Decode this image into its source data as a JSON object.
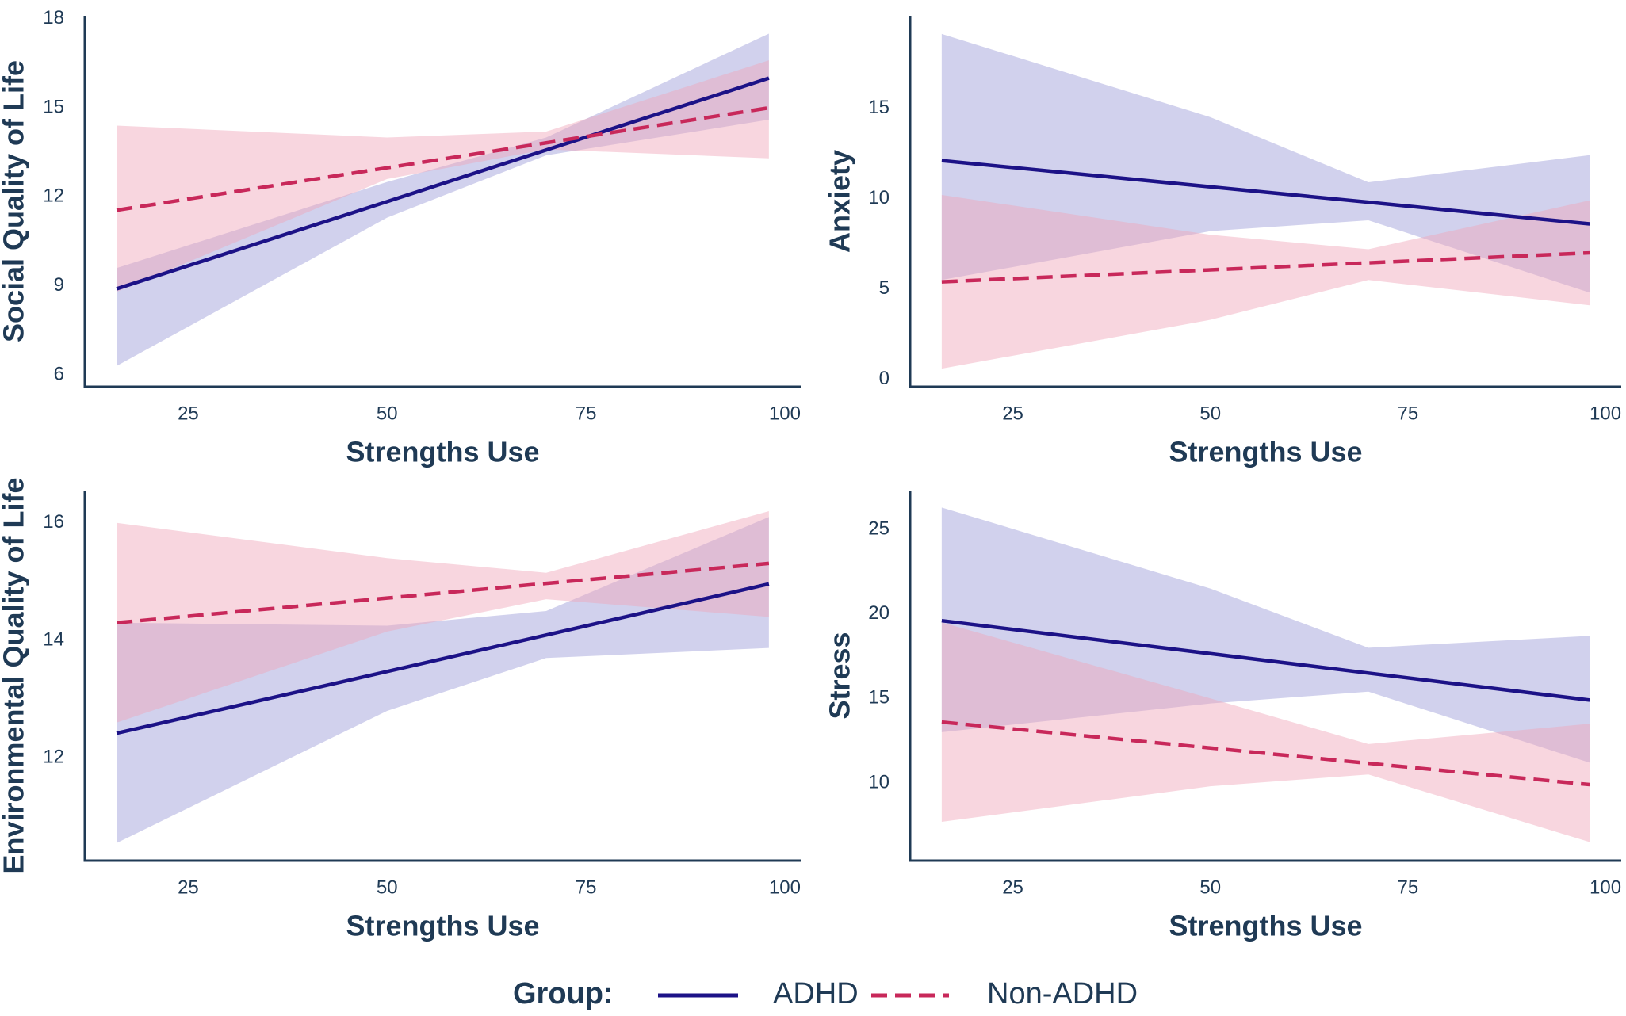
{
  "chart_data": [
    {
      "type": "line",
      "x_label": "Strengths Use",
      "y_label": "Social Quality of Life",
      "xlim": [
        12,
        102
      ],
      "xticks": [
        25,
        50,
        75,
        100
      ],
      "ylim": [
        5.6,
        18.1
      ],
      "yticks": [
        6,
        9,
        12,
        15,
        18
      ],
      "series": [
        {
          "name": "ADHD",
          "color": "#1c1287",
          "band_color": "#9a9ad6",
          "dashed": false,
          "x": [
            16,
            50,
            70,
            98
          ],
          "values": [
            8.9,
            11.84,
            13.58,
            16.0
          ],
          "lower": [
            6.3,
            11.3,
            13.4,
            14.6
          ],
          "upper": [
            9.6,
            12.5,
            14.0,
            17.5
          ]
        },
        {
          "name": "Non-ADHD",
          "color": "#c8285a",
          "band_color": "#f0a3b8",
          "dashed": true,
          "x": [
            16,
            50,
            70,
            98
          ],
          "values": [
            11.55,
            12.98,
            13.82,
            15.0
          ],
          "lower": [
            8.8,
            12.6,
            13.6,
            13.3
          ],
          "upper": [
            14.4,
            14.0,
            14.2,
            16.6
          ]
        }
      ]
    },
    {
      "type": "line",
      "x_label": "Strengths Use",
      "y_label": "Anxiety",
      "xlim": [
        12,
        102
      ],
      "xticks": [
        25,
        50,
        75,
        100
      ],
      "ylim": [
        -0.4,
        20.1
      ],
      "yticks": [
        0,
        5,
        10,
        15
      ],
      "series": [
        {
          "name": "ADHD",
          "color": "#1c1287",
          "band_color": "#9a9ad6",
          "dashed": false,
          "x": [
            16,
            50,
            70,
            98
          ],
          "values": [
            12.1,
            10.65,
            9.8,
            8.6
          ],
          "lower": [
            5.5,
            8.2,
            8.8,
            4.8
          ],
          "upper": [
            19.1,
            14.5,
            10.9,
            12.4
          ]
        },
        {
          "name": "Non-ADHD",
          "color": "#c8285a",
          "band_color": "#f0a3b8",
          "dashed": true,
          "x": [
            16,
            50,
            70,
            98
          ],
          "values": [
            5.4,
            6.06,
            6.45,
            7.0
          ],
          "lower": [
            0.6,
            3.3,
            5.5,
            4.1
          ],
          "upper": [
            10.2,
            8.0,
            7.2,
            9.9
          ]
        }
      ]
    },
    {
      "type": "line",
      "x_label": "Strengths Use",
      "y_label": "Environmental Quality of Life",
      "xlim": [
        12,
        102
      ],
      "xticks": [
        25,
        50,
        75,
        100
      ],
      "ylim": [
        10.25,
        16.55
      ],
      "yticks": [
        12,
        14,
        16
      ],
      "series": [
        {
          "name": "ADHD",
          "color": "#1c1287",
          "band_color": "#9a9ad6",
          "dashed": false,
          "x": [
            16,
            50,
            70,
            98
          ],
          "values": [
            12.42,
            13.47,
            14.09,
            14.96
          ],
          "lower": [
            10.55,
            12.8,
            13.7,
            13.87
          ],
          "upper": [
            14.3,
            14.25,
            14.5,
            16.1
          ]
        },
        {
          "name": "Non-ADHD",
          "color": "#c8285a",
          "band_color": "#f0a3b8",
          "dashed": true,
          "x": [
            16,
            50,
            70,
            98
          ],
          "values": [
            14.3,
            14.72,
            14.97,
            15.31
          ],
          "lower": [
            12.6,
            14.15,
            14.7,
            14.4
          ],
          "upper": [
            16.0,
            15.4,
            15.15,
            16.2
          ]
        }
      ]
    },
    {
      "type": "line",
      "x_label": "Strengths Use",
      "y_label": "Stress",
      "xlim": [
        12,
        102
      ],
      "xticks": [
        25,
        50,
        75,
        100
      ],
      "ylim": [
        5.4,
        27.3
      ],
      "yticks": [
        10,
        15,
        20,
        25
      ],
      "series": [
        {
          "name": "ADHD",
          "color": "#1c1287",
          "band_color": "#9a9ad6",
          "dashed": false,
          "x": [
            16,
            50,
            70,
            98
          ],
          "values": [
            19.6,
            17.65,
            16.5,
            14.9
          ],
          "lower": [
            13.0,
            14.7,
            15.4,
            11.2
          ],
          "upper": [
            26.3,
            21.5,
            18.0,
            18.7
          ]
        },
        {
          "name": "Non-ADHD",
          "color": "#c8285a",
          "band_color": "#f0a3b8",
          "dashed": true,
          "x": [
            16,
            50,
            70,
            98
          ],
          "values": [
            13.6,
            12.07,
            11.16,
            9.9
          ],
          "lower": [
            7.7,
            9.8,
            10.5,
            6.5
          ],
          "upper": [
            19.5,
            15.0,
            12.3,
            13.5
          ]
        }
      ]
    }
  ],
  "legend": {
    "title": "Group:"
  }
}
